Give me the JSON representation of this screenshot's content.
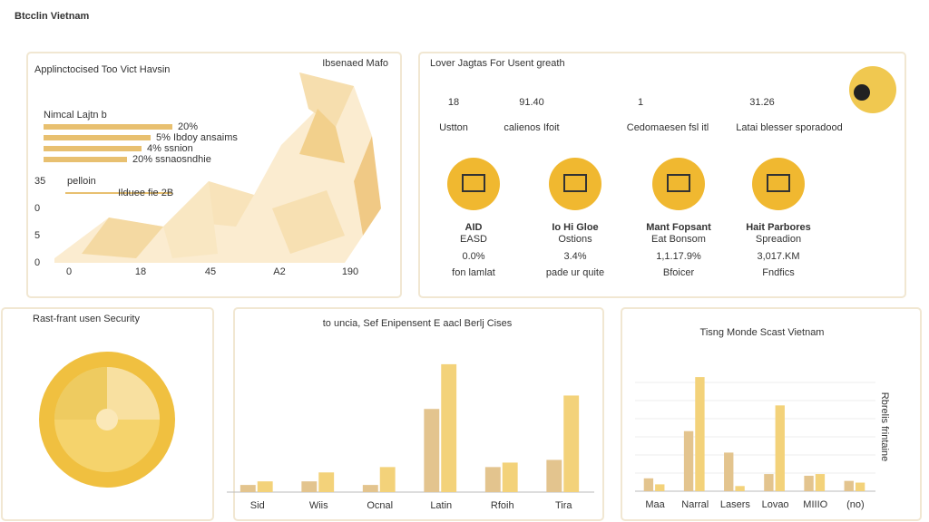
{
  "title": "Btcclin Vietnam",
  "map_panel": {
    "title": "Applinctocised Too Vict Havsin",
    "note": "Ibsenaed Mafo",
    "legend": "Nimcal Lajtn b",
    "bar_labels": [
      "20%",
      "5% Ibdoy ansaims",
      "4% ssnion",
      "20% ssnaosndhie"
    ],
    "extra": [
      "pelloin",
      "Ilduee fie 2B"
    ],
    "y_labels": [
      "35",
      "0",
      "5",
      "0"
    ],
    "x_labels": [
      "0",
      "18",
      "45",
      "A2",
      "190"
    ]
  },
  "stats_panel": {
    "title": "Lover Jagtas For Usent greath",
    "stats": [
      {
        "value": 18,
        "label": "Ustton"
      },
      {
        "value": "91.40",
        "label": "calienos Ifoit"
      },
      {
        "value": 1,
        "label": "Cedomaesen fsl itl"
      },
      {
        "value": 31.26,
        "label": "Latai blesser sporadood"
      }
    ],
    "features": [
      {
        "name": "AID",
        "sub": "EASD",
        "value": "0.0%",
        "note": "fon lamlat"
      },
      {
        "name": "Io Hi Gloe",
        "sub": "Ostions",
        "value": "3.4%",
        "note": "pade ur quite"
      },
      {
        "name": "Mant Fopsant",
        "sub": "Eat Bonsom",
        "value": "1,1.17.9%",
        "note": "Bfoicer"
      },
      {
        "name": "Hait Parbores",
        "sub": "Spreadion",
        "value": "3,017.KM",
        "note": "Fndfics"
      }
    ]
  },
  "security_panel": {
    "title": "Rast-frant usen Security"
  },
  "chart_data": [
    {
      "type": "bar",
      "title": "to uncia, Sef Enipensent E aacl Berlj Cises",
      "categories": [
        "Sid",
        "Wiis",
        "Ocnal",
        "Latin",
        "Rfoih",
        "Tira"
      ],
      "ylim": [
        0,
        150
      ],
      "series": [
        {
          "color": "#e3c48e",
          "values": [
            8,
            12,
            8,
            93,
            28,
            36
          ]
        },
        {
          "color": "#f3d27a",
          "values": [
            12,
            22,
            28,
            143,
            33,
            108
          ]
        }
      ]
    },
    {
      "type": "bar",
      "title": "Tisng Monde Scast Vietnam",
      "y_label": "Rbrelis frintaine",
      "categories": [
        "Maa",
        "Narral",
        "Lasers",
        "Lovao",
        "MIIIO",
        "(no)"
      ],
      "ylim": [
        0,
        150
      ],
      "series": [
        {
          "color": "#e3c48e",
          "values": [
            15,
            70,
            45,
            20,
            18,
            12
          ]
        },
        {
          "color": "#f3d27a",
          "values": [
            8,
            133,
            6,
            100,
            20,
            10
          ]
        }
      ]
    }
  ]
}
